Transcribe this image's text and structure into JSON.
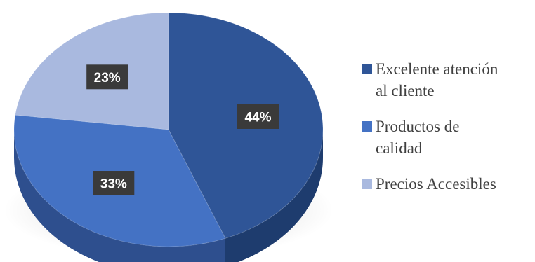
{
  "chart_data": {
    "type": "pie",
    "title": "",
    "style": "3d",
    "legend_position": "right",
    "categories": [
      "Excelente atención al cliente",
      "Productos de calidad",
      "Precios Accesibles"
    ],
    "values": [
      44,
      33,
      23
    ],
    "labels": [
      "44%",
      "33%",
      "23%"
    ],
    "legend": [
      {
        "lines": [
          "Excelente atención",
          "al cliente"
        ]
      },
      {
        "lines": [
          "Productos de",
          "calidad"
        ]
      },
      {
        "lines": [
          "Precios Accesibles"
        ]
      }
    ],
    "colors": [
      "#2f5597",
      "#4472c4",
      "#a9b9df"
    ],
    "side_colors": [
      "#1e3c6e",
      "#2e4f8e",
      "#7f8fb5"
    ]
  }
}
